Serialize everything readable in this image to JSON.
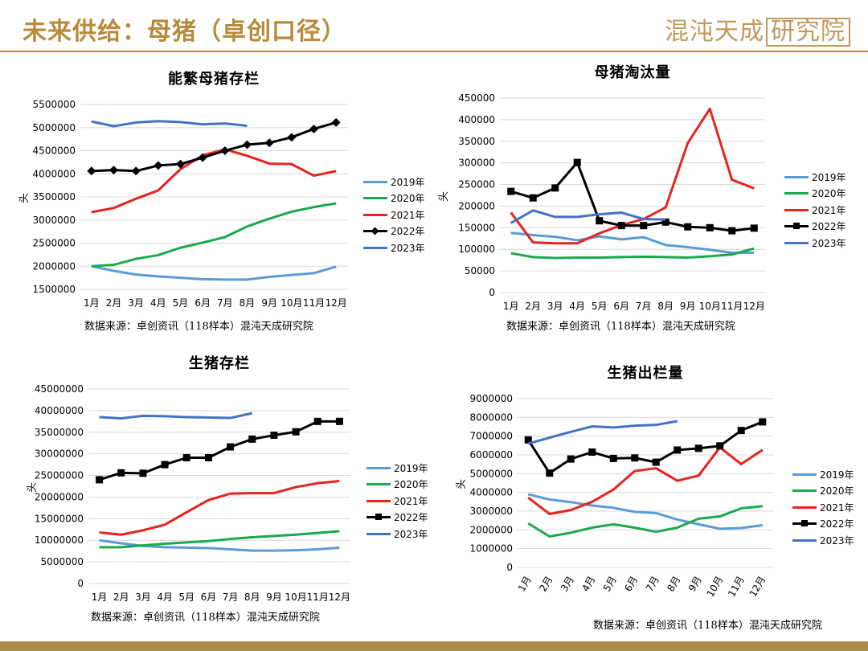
{
  "header": {
    "title": "未来供给：母猪（卓创口径）",
    "brand_text": "混沌天成",
    "brand_box": "研究院"
  },
  "colors": {
    "2019年": "#5b9bd5",
    "2020年": "#1aaa4b",
    "2021年": "#e8221f",
    "2022年": "#000000",
    "2023年": "#4472c4",
    "accent": "#b88a3a"
  },
  "chart_data": [
    {
      "id": "chart1",
      "type": "line",
      "title": "能繁母猪存栏",
      "ylabel": "头",
      "source": "数据来源：卓创资讯（118样本）混沌天成研究院",
      "categories": [
        "1月",
        "2月",
        "3月",
        "4月",
        "5月",
        "6月",
        "7月",
        "8月",
        "9月",
        "10月",
        "11月",
        "12月"
      ],
      "ylim": [
        1500000,
        5500000
      ],
      "yticks": [
        1500000,
        2000000,
        2500000,
        3000000,
        3500000,
        4000000,
        4500000,
        5000000,
        5500000
      ],
      "ytick_labels": [
        "1500000",
        "2000000",
        "2500000",
        "3000000",
        "3500000",
        "4000000",
        "4500000",
        "5000000",
        "5500000"
      ],
      "grid": true,
      "legend_position": "right",
      "series": [
        {
          "name": "2019年",
          "marker": "none",
          "values": [
            2000000,
            1900000,
            1820000,
            1780000,
            1750000,
            1720000,
            1710000,
            1710000,
            1770000,
            1810000,
            1850000,
            1990000
          ]
        },
        {
          "name": "2020年",
          "marker": "none",
          "values": [
            2000000,
            2030000,
            2160000,
            2240000,
            2400000,
            2510000,
            2630000,
            2860000,
            3030000,
            3180000,
            3280000,
            3360000
          ]
        },
        {
          "name": "2021年",
          "marker": "none",
          "values": [
            3170000,
            3260000,
            3460000,
            3640000,
            4100000,
            4400000,
            4530000,
            4390000,
            4220000,
            4210000,
            3960000,
            4060000
          ]
        },
        {
          "name": "2022年",
          "marker": "diamond",
          "values": [
            4060000,
            4080000,
            4060000,
            4180000,
            4210000,
            4350000,
            4500000,
            4630000,
            4670000,
            4790000,
            4970000,
            5110000
          ]
        },
        {
          "name": "2023年",
          "marker": "none",
          "values": [
            5130000,
            5030000,
            5110000,
            5140000,
            5120000,
            5070000,
            5090000,
            5040000,
            null,
            null,
            null,
            null
          ]
        }
      ]
    },
    {
      "id": "chart2",
      "type": "line",
      "title": "母猪淘汰量",
      "ylabel": "头",
      "source": "数据来源：卓创资讯（118样本）混沌天成研究院",
      "categories": [
        "1月",
        "2月",
        "3月",
        "4月",
        "5月",
        "6月",
        "7月",
        "8月",
        "9月",
        "10月",
        "11月",
        "12月"
      ],
      "ylim": [
        0,
        450000
      ],
      "yticks": [
        0,
        50000,
        100000,
        150000,
        200000,
        250000,
        300000,
        350000,
        400000,
        450000
      ],
      "ytick_labels": [
        "0",
        "50000",
        "100000",
        "150000",
        "200000",
        "250000",
        "300000",
        "350000",
        "400000",
        "450000"
      ],
      "grid": true,
      "legend_position": "right",
      "series": [
        {
          "name": "2019年",
          "marker": "none",
          "values": [
            138000,
            133000,
            129000,
            121000,
            130000,
            123000,
            128000,
            110000,
            105000,
            99000,
            92000,
            92000
          ]
        },
        {
          "name": "2020年",
          "marker": "none",
          "values": [
            91000,
            82000,
            80000,
            81000,
            81000,
            82000,
            83000,
            82000,
            81000,
            84000,
            88000,
            102000
          ]
        },
        {
          "name": "2021年",
          "marker": "none",
          "values": [
            185000,
            116000,
            114000,
            114000,
            137000,
            156000,
            170000,
            197000,
            346000,
            425000,
            261000,
            241000
          ]
        },
        {
          "name": "2022年",
          "marker": "square",
          "values": [
            234000,
            219000,
            242000,
            301000,
            166000,
            155000,
            155000,
            163000,
            152000,
            150000,
            143000,
            149000
          ]
        },
        {
          "name": "2023年",
          "marker": "none",
          "values": [
            161000,
            190000,
            175000,
            175000,
            181000,
            185000,
            170000,
            169000,
            null,
            null,
            null,
            null
          ]
        }
      ]
    },
    {
      "id": "chart3",
      "type": "line",
      "title": "生猪存栏",
      "ylabel": "头",
      "source": "数据来源：卓创资讯（118样本）混沌天成研究院",
      "categories": [
        "1月",
        "2月",
        "3月",
        "4月",
        "5月",
        "6月",
        "7月",
        "8月",
        "9月",
        "10月",
        "11月",
        "12月"
      ],
      "ylim": [
        0,
        45000000
      ],
      "yticks": [
        0,
        5000000,
        10000000,
        15000000,
        20000000,
        25000000,
        30000000,
        35000000,
        40000000,
        45000000
      ],
      "ytick_labels": [
        "0",
        "5000000",
        "10000000",
        "15000000",
        "20000000",
        "25000000",
        "30000000",
        "35000000",
        "40000000",
        "45000000"
      ],
      "grid": true,
      "legend_position": "right",
      "series": [
        {
          "name": "2019年",
          "marker": "none",
          "values": [
            10000000,
            9300000,
            8700000,
            8400000,
            8300000,
            8200000,
            7900000,
            7600000,
            7600000,
            7700000,
            7900000,
            8300000
          ]
        },
        {
          "name": "2020年",
          "marker": "none",
          "values": [
            8400000,
            8400000,
            8800000,
            9200000,
            9500000,
            9800000,
            10300000,
            10700000,
            11000000,
            11300000,
            11700000,
            12100000
          ]
        },
        {
          "name": "2021年",
          "marker": "none",
          "values": [
            11800000,
            11300000,
            12300000,
            13600000,
            16500000,
            19300000,
            20800000,
            20900000,
            20900000,
            22300000,
            23200000,
            23700000
          ]
        },
        {
          "name": "2022年",
          "marker": "square",
          "values": [
            24000000,
            25600000,
            25500000,
            27500000,
            29100000,
            29100000,
            31600000,
            33400000,
            34300000,
            35100000,
            37500000,
            37500000
          ]
        },
        {
          "name": "2023年",
          "marker": "none",
          "values": [
            38500000,
            38200000,
            38800000,
            38700000,
            38500000,
            38400000,
            38300000,
            39400000,
            null,
            null,
            null,
            null
          ]
        }
      ]
    },
    {
      "id": "chart4",
      "type": "line",
      "title": "生猪出栏量",
      "ylabel": "头",
      "source": "数据来源：卓创资讯（118样本）混沌天成研究院",
      "categories": [
        "1月",
        "2月",
        "3月",
        "4月",
        "5月",
        "6月",
        "7月",
        "8月",
        "9月",
        "10月",
        "11月",
        "12月"
      ],
      "ylim": [
        0,
        9000000
      ],
      "yticks": [
        0,
        1000000,
        2000000,
        3000000,
        4000000,
        5000000,
        6000000,
        7000000,
        8000000,
        9000000
      ],
      "ytick_labels": [
        "0",
        "1000000",
        "2000000",
        "3000000",
        "4000000",
        "5000000",
        "6000000",
        "7000000",
        "8000000",
        "9000000"
      ],
      "grid": true,
      "legend_position": "right",
      "series": [
        {
          "name": "2019年",
          "marker": "none",
          "values": [
            3900000,
            3620000,
            3480000,
            3300000,
            3180000,
            2960000,
            2900000,
            2550000,
            2300000,
            2060000,
            2100000,
            2250000
          ]
        },
        {
          "name": "2020年",
          "marker": "none",
          "values": [
            2350000,
            1650000,
            1850000,
            2120000,
            2300000,
            2120000,
            1900000,
            2120000,
            2600000,
            2720000,
            3150000,
            3270000
          ]
        },
        {
          "name": "2021年",
          "marker": "none",
          "values": [
            3720000,
            2850000,
            3060000,
            3500000,
            4150000,
            5140000,
            5290000,
            4620000,
            4900000,
            6400000,
            5510000,
            6270000
          ]
        },
        {
          "name": "2022年",
          "marker": "square",
          "values": [
            6800000,
            5030000,
            5780000,
            6150000,
            5810000,
            5840000,
            5610000,
            6260000,
            6350000,
            6480000,
            7300000,
            7760000
          ]
        },
        {
          "name": "2023年",
          "marker": "none",
          "values": [
            6600000,
            6920000,
            7230000,
            7520000,
            7460000,
            7560000,
            7600000,
            7800000,
            null,
            null,
            null,
            null
          ]
        }
      ]
    }
  ]
}
